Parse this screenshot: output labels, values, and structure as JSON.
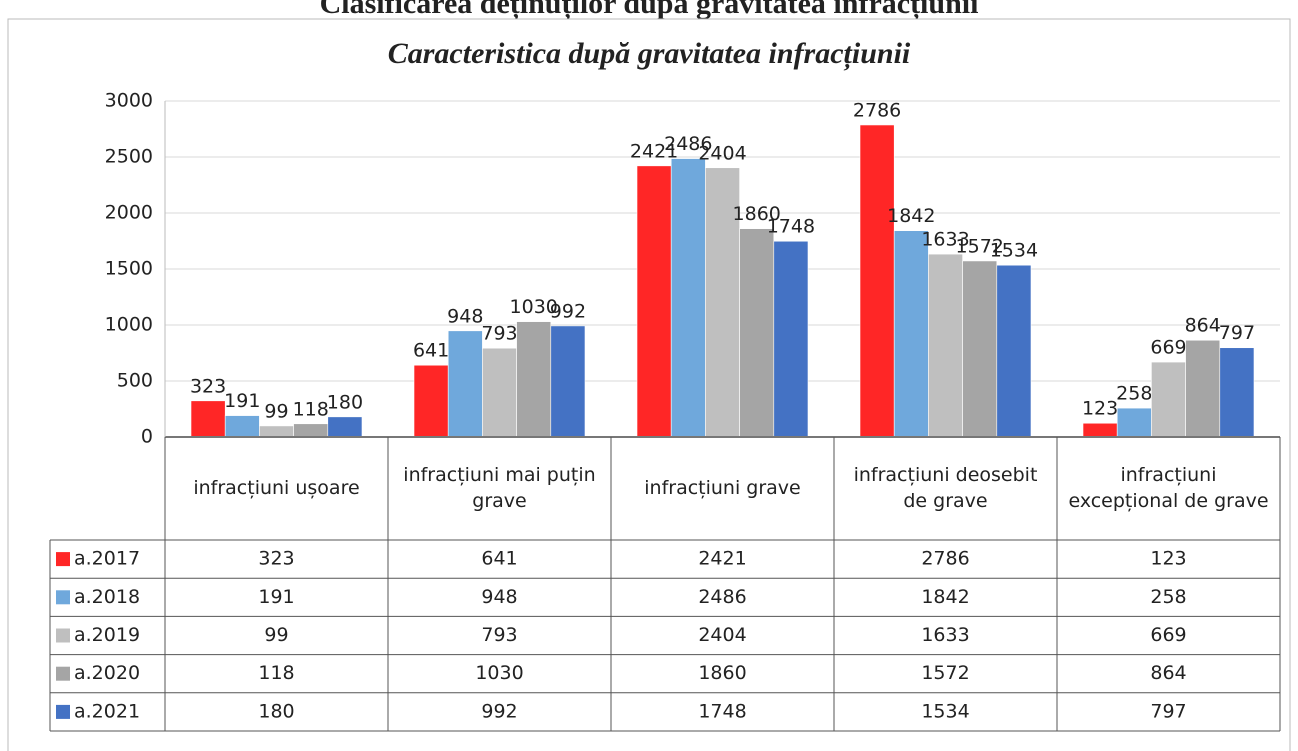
{
  "page_title": "Clasificarea deținuților după gravitatea infracțiunii",
  "chart_data": {
    "type": "bar",
    "title": "Caracteristica după gravitatea infracțiunii",
    "categories": [
      "infracțiuni ușoare",
      "infracțiuni mai puțin grave",
      "infracțiuni grave",
      "infracțiuni deosebit de grave",
      "infracțiuni excepțional de grave"
    ],
    "series": [
      {
        "name": "a.2017",
        "color": "#ff2626",
        "values": [
          323,
          641,
          2421,
          2786,
          123
        ]
      },
      {
        "name": "a.2018",
        "color": "#6fa8dc",
        "values": [
          191,
          948,
          2486,
          1842,
          258
        ]
      },
      {
        "name": "a.2019",
        "color": "#bfbfbf",
        "values": [
          99,
          793,
          2404,
          1633,
          669
        ]
      },
      {
        "name": "a.2020",
        "color": "#a5a5a5",
        "values": [
          118,
          1030,
          1860,
          1572,
          864
        ]
      },
      {
        "name": "a.2021",
        "color": "#4472c4",
        "values": [
          180,
          992,
          1748,
          1534,
          797
        ]
      }
    ],
    "ylim": [
      0,
      3000
    ],
    "yticks": [
      0,
      500,
      1000,
      1500,
      2000,
      2500,
      3000
    ],
    "grid": true,
    "data_table": true
  }
}
